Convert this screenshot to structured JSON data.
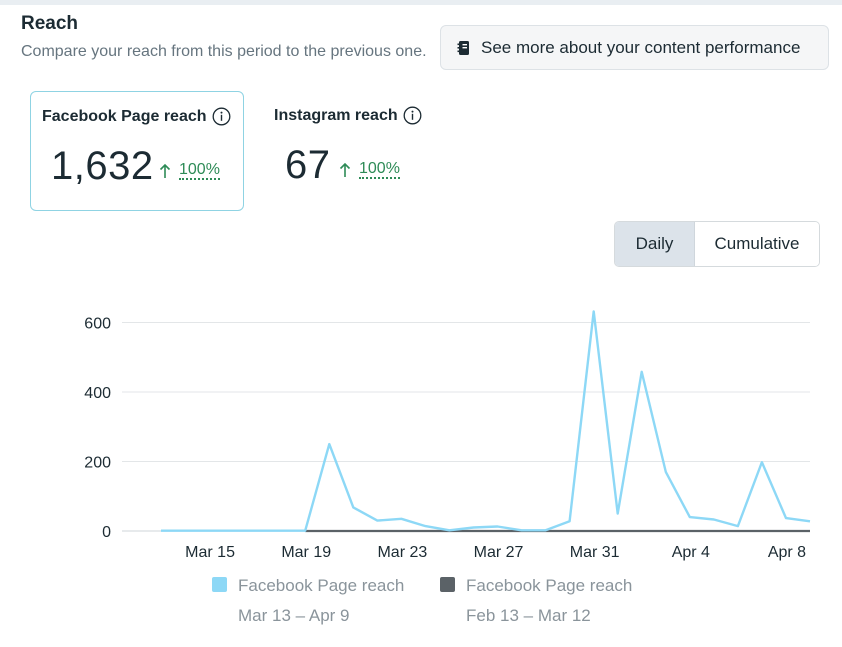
{
  "header": {
    "title": "Reach",
    "subtitle": "Compare your reach from this period to the previous one.",
    "more_button": "See more about your content performance"
  },
  "cards": [
    {
      "label": "Facebook Page reach",
      "value": "1,632",
      "change": "100%"
    },
    {
      "label": "Instagram reach",
      "value": "67",
      "change": "100%"
    }
  ],
  "toggle": {
    "daily": "Daily",
    "cumulative": "Cumulative",
    "selected": "Daily"
  },
  "colors": {
    "current": "#8dd8f6",
    "previous": "#5b6267",
    "accent_green": "#2e8b57"
  },
  "chart_data": {
    "type": "line",
    "x": [
      "Mar 13",
      "Mar 14",
      "Mar 15",
      "Mar 16",
      "Mar 17",
      "Mar 18",
      "Mar 19",
      "Mar 20",
      "Mar 21",
      "Mar 22",
      "Mar 23",
      "Mar 24",
      "Mar 25",
      "Mar 26",
      "Mar 27",
      "Mar 28",
      "Mar 29",
      "Mar 30",
      "Mar 31",
      "Apr 1",
      "Apr 2",
      "Apr 3",
      "Apr 4",
      "Apr 5",
      "Apr 6",
      "Apr 7",
      "Apr 8",
      "Apr 9"
    ],
    "series": [
      {
        "name": "Facebook Page reach",
        "range": "Mar 13 – Apr 9",
        "color": "#8dd8f6",
        "values": [
          1,
          1,
          1,
          1,
          1,
          1,
          1,
          250,
          68,
          30,
          35,
          14,
          2,
          10,
          13,
          2,
          2,
          28,
          632,
          50,
          458,
          170,
          40,
          33,
          14,
          198,
          37,
          28
        ]
      },
      {
        "name": "Facebook Page reach",
        "range": "Feb 13 – Mar 12",
        "color": "#5b6267",
        "values": [
          null,
          null,
          null,
          null,
          null,
          null,
          0,
          0,
          0,
          0,
          0,
          0,
          0,
          0,
          0,
          0,
          0,
          0,
          0,
          0,
          0,
          0,
          0,
          0,
          0,
          0,
          0,
          0
        ]
      }
    ],
    "x_tick_labels": [
      "Mar 15",
      "Mar 19",
      "Mar 23",
      "Mar 27",
      "Mar 31",
      "Apr 4",
      "Apr 8"
    ],
    "y_ticks": [
      0,
      200,
      400,
      600
    ],
    "ylim": [
      0,
      640
    ],
    "title": "",
    "xlabel": "",
    "ylabel": "",
    "grid": true,
    "legend_position": "bottom"
  }
}
